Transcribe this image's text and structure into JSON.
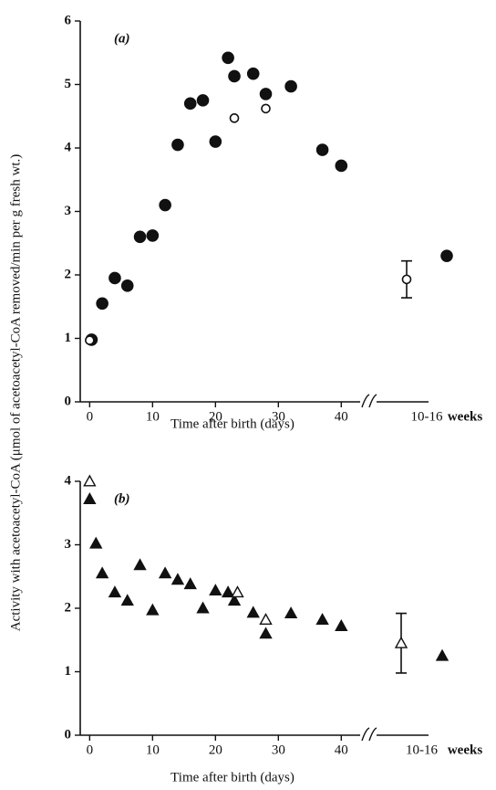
{
  "chart_data": [
    {
      "type": "scatter",
      "panel_label": "(a)",
      "ylabel": "Activity with acetoacetyl-CoA (μmol of acetoacetyl-CoA removed/min per g fresh wt.)",
      "xlabel": "Time after birth (days)",
      "xlim": [
        -1.5,
        43
      ],
      "xticks": [
        0,
        10,
        20,
        30,
        40
      ],
      "ylim": [
        0,
        6
      ],
      "yticks": [
        0,
        1,
        2,
        3,
        4,
        5,
        6
      ],
      "series": [
        {
          "marker": "circle",
          "filled": true,
          "x": [
            0.3,
            2,
            4,
            6,
            8,
            10,
            12,
            14,
            16,
            18,
            20,
            22,
            23,
            26,
            28,
            32,
            37,
            40
          ],
          "values": [
            0.98,
            1.55,
            1.95,
            1.83,
            2.6,
            2.62,
            3.1,
            4.05,
            4.7,
            4.75,
            4.1,
            5.42,
            5.13,
            5.17,
            4.85,
            4.97,
            3.97,
            3.72
          ]
        },
        {
          "marker": "circle",
          "filled": false,
          "x": [
            0,
            23,
            28
          ],
          "values": [
            0.97,
            4.47,
            4.62
          ]
        }
      ],
      "adult": {
        "label": "10-16",
        "unit": "weeks",
        "points": [
          {
            "marker": "circle",
            "filled": false,
            "value": 1.93,
            "error": 0.29
          },
          {
            "marker": "circle",
            "filled": true,
            "value": 2.3
          }
        ]
      }
    },
    {
      "type": "scatter",
      "panel_label": "(b)",
      "xlabel": "Time after birth (days)",
      "xlim": [
        -1.5,
        43
      ],
      "xticks": [
        0,
        10,
        20,
        30,
        40
      ],
      "ylim": [
        0,
        4
      ],
      "yticks": [
        0,
        1,
        2,
        3,
        4
      ],
      "series": [
        {
          "marker": "triangle",
          "filled": true,
          "x": [
            0,
            1,
            2,
            4,
            6,
            8,
            10,
            12,
            14,
            16,
            18,
            20,
            22,
            23,
            26,
            28,
            32,
            37,
            40
          ],
          "values": [
            3.72,
            3.02,
            2.55,
            2.25,
            2.12,
            2.68,
            1.97,
            2.55,
            2.45,
            2.38,
            2.0,
            2.28,
            2.25,
            2.12,
            1.93,
            1.6,
            1.92,
            1.82,
            1.72
          ]
        },
        {
          "marker": "triangle",
          "filled": false,
          "x": [
            0,
            23.5,
            28
          ],
          "values": [
            4.0,
            2.25,
            1.82
          ]
        }
      ],
      "adult": {
        "label": "10-16",
        "unit": "weeks",
        "points": [
          {
            "marker": "triangle",
            "filled": false,
            "value": 1.45,
            "error": 0.47
          },
          {
            "marker": "triangle",
            "filled": true,
            "value": 1.25
          }
        ]
      }
    }
  ]
}
